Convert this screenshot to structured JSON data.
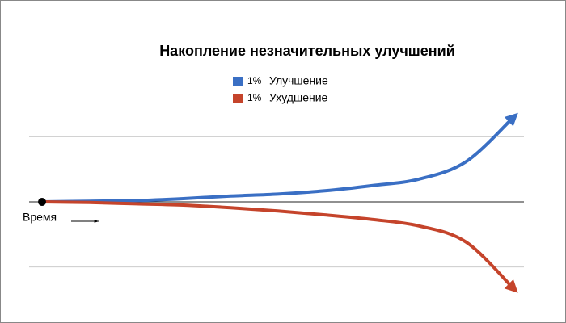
{
  "chart_data": {
    "type": "line",
    "title": "Накопление незначительных улучшений",
    "x": [
      0,
      1,
      2,
      3,
      4,
      5,
      6,
      7,
      8,
      9,
      10
    ],
    "xlim": [
      0,
      10
    ],
    "ylim": [
      -1.75,
      1.75
    ],
    "yticks": [
      -1,
      0,
      1
    ],
    "grid": true,
    "annotation": "Время",
    "series": [
      {
        "name": "Улучшение",
        "label_prefix": "1%",
        "color": "#3a6fc4",
        "values": [
          0,
          0.01,
          0.02,
          0.05,
          0.09,
          0.12,
          0.17,
          0.25,
          0.35,
          0.62,
          1.3
        ]
      },
      {
        "name": "Ухудшение",
        "label_prefix": "1%",
        "color": "#c5442b",
        "values": [
          0,
          -0.01,
          -0.03,
          -0.05,
          -0.09,
          -0.14,
          -0.2,
          -0.27,
          -0.37,
          -0.62,
          -1.33
        ]
      }
    ]
  }
}
